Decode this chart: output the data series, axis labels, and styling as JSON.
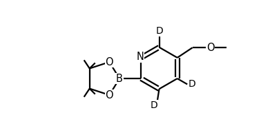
{
  "background_color": "#ffffff",
  "line_color": "#000000",
  "line_width": 1.6,
  "font_size": 10.5,
  "xlim": [
    -3.0,
    3.0
  ],
  "ylim": [
    -1.3,
    1.3
  ]
}
